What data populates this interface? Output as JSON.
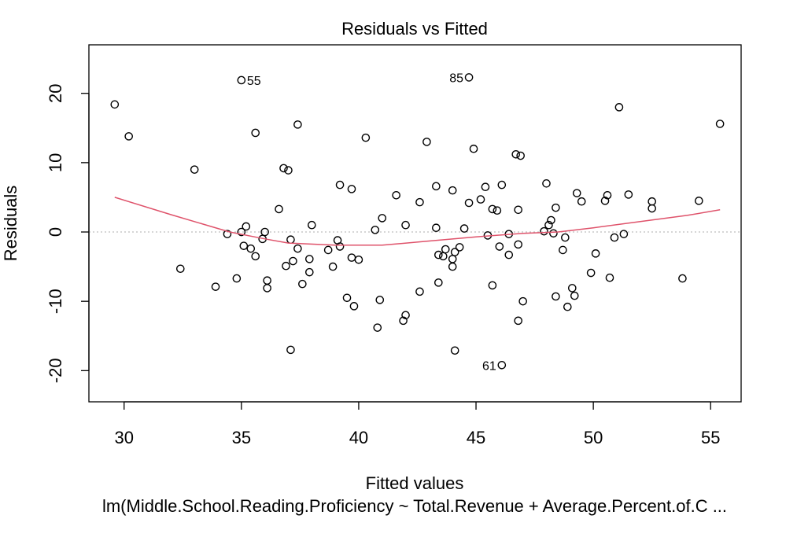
{
  "chart_data": {
    "type": "scatter",
    "title": "Residuals vs Fitted",
    "xlabel": "Fitted values",
    "ylabel": "Residuals",
    "subtitle": "lm(Middle.School.Reading.Proficiency ~ Total.Revenue + Average.Percent.of.C ...",
    "xlim": [
      28.5,
      56.3
    ],
    "ylim": [
      -24.5,
      27
    ],
    "x_ticks": [
      30,
      35,
      40,
      45,
      50,
      55
    ],
    "y_ticks": [
      -20,
      -10,
      0,
      10,
      20
    ],
    "x_tick_labels": [
      "30",
      "35",
      "40",
      "45",
      "50",
      "55"
    ],
    "y_tick_labels": [
      "-20",
      "-10",
      "0",
      "10",
      "20"
    ],
    "reference_line": 0,
    "colors": {
      "points": "#000000",
      "smooth": "#DF536B",
      "reference": "#BEBEBE"
    },
    "labeled_points": [
      {
        "label": "55",
        "x": 35.0,
        "y": 21.9
      },
      {
        "label": "85",
        "x": 44.7,
        "y": 22.3
      },
      {
        "label": "61",
        "x": 46.1,
        "y": -19.2
      }
    ],
    "points": [
      [
        29.6,
        18.4
      ],
      [
        30.2,
        13.8
      ],
      [
        33.0,
        9.0
      ],
      [
        32.4,
        -5.3
      ],
      [
        33.9,
        -7.9
      ],
      [
        34.4,
        -0.3
      ],
      [
        34.8,
        -6.7
      ],
      [
        35.0,
        0.0
      ],
      [
        35.1,
        -2.0
      ],
      [
        35.2,
        0.8
      ],
      [
        35.4,
        -2.4
      ],
      [
        35.6,
        14.3
      ],
      [
        35.6,
        -3.5
      ],
      [
        35.9,
        -1.0
      ],
      [
        36.0,
        0.0
      ],
      [
        36.1,
        -7.0
      ],
      [
        36.1,
        -8.1
      ],
      [
        36.6,
        3.3
      ],
      [
        36.8,
        9.2
      ],
      [
        36.9,
        -4.9
      ],
      [
        37.1,
        -1.1
      ],
      [
        37.0,
        8.9
      ],
      [
        37.1,
        -17.0
      ],
      [
        37.2,
        -4.2
      ],
      [
        37.4,
        15.5
      ],
      [
        37.4,
        -2.4
      ],
      [
        37.6,
        -7.5
      ],
      [
        37.9,
        -3.9
      ],
      [
        37.9,
        -5.8
      ],
      [
        38.0,
        1.0
      ],
      [
        38.7,
        -2.6
      ],
      [
        38.9,
        -5.0
      ],
      [
        39.1,
        -1.2
      ],
      [
        39.2,
        6.8
      ],
      [
        39.2,
        -2.1
      ],
      [
        39.5,
        -9.5
      ],
      [
        39.7,
        -3.7
      ],
      [
        39.7,
        6.2
      ],
      [
        39.8,
        -10.7
      ],
      [
        40.0,
        -4.0
      ],
      [
        40.3,
        13.6
      ],
      [
        40.7,
        0.3
      ],
      [
        40.8,
        -13.8
      ],
      [
        40.9,
        -9.8
      ],
      [
        41.0,
        2.0
      ],
      [
        41.6,
        5.3
      ],
      [
        41.9,
        -12.8
      ],
      [
        42.0,
        -12.0
      ],
      [
        42.0,
        1.0
      ],
      [
        42.6,
        -8.6
      ],
      [
        42.6,
        4.3
      ],
      [
        42.9,
        13.0
      ],
      [
        43.3,
        0.6
      ],
      [
        43.3,
        6.6
      ],
      [
        43.4,
        -3.3
      ],
      [
        43.4,
        -7.3
      ],
      [
        43.6,
        -3.5
      ],
      [
        43.7,
        -2.5
      ],
      [
        44.0,
        -3.9
      ],
      [
        44.0,
        6.0
      ],
      [
        44.1,
        -2.9
      ],
      [
        44.0,
        -5.0
      ],
      [
        44.1,
        -17.1
      ],
      [
        44.3,
        -2.2
      ],
      [
        44.5,
        0.5
      ],
      [
        44.7,
        4.2
      ],
      [
        44.9,
        12.0
      ],
      [
        45.2,
        4.7
      ],
      [
        45.4,
        6.5
      ],
      [
        45.5,
        -0.5
      ],
      [
        45.7,
        3.3
      ],
      [
        45.7,
        -7.7
      ],
      [
        45.9,
        3.1
      ],
      [
        46.0,
        -2.1
      ],
      [
        46.1,
        6.8
      ],
      [
        46.4,
        -0.3
      ],
      [
        46.4,
        -3.3
      ],
      [
        46.7,
        11.2
      ],
      [
        46.8,
        3.2
      ],
      [
        46.8,
        -12.8
      ],
      [
        46.8,
        -1.8
      ],
      [
        46.9,
        11.0
      ],
      [
        47.0,
        -10.0
      ],
      [
        47.9,
        0.1
      ],
      [
        48.0,
        7.0
      ],
      [
        48.1,
        1.0
      ],
      [
        48.2,
        1.7
      ],
      [
        48.3,
        -0.2
      ],
      [
        48.4,
        3.5
      ],
      [
        48.4,
        -9.3
      ],
      [
        48.7,
        -2.6
      ],
      [
        48.8,
        -0.8
      ],
      [
        48.9,
        -10.8
      ],
      [
        49.1,
        -8.1
      ],
      [
        49.2,
        -9.2
      ],
      [
        49.3,
        5.6
      ],
      [
        49.5,
        4.4
      ],
      [
        49.9,
        -5.9
      ],
      [
        50.1,
        -3.1
      ],
      [
        50.5,
        4.5
      ],
      [
        50.6,
        5.3
      ],
      [
        50.7,
        -6.6
      ],
      [
        50.9,
        -0.8
      ],
      [
        51.1,
        18.0
      ],
      [
        51.3,
        -0.3
      ],
      [
        51.5,
        5.4
      ],
      [
        52.5,
        3.4
      ],
      [
        52.5,
        4.4
      ],
      [
        53.8,
        -6.7
      ],
      [
        54.5,
        4.5
      ],
      [
        55.4,
        15.6
      ],
      [
        35.0,
        21.9
      ],
      [
        44.7,
        22.3
      ],
      [
        46.1,
        -19.2
      ]
    ],
    "smooth": [
      [
        29.6,
        5.0
      ],
      [
        32.0,
        2.5
      ],
      [
        34.5,
        0.0
      ],
      [
        36.0,
        -1.0
      ],
      [
        37.0,
        -1.6
      ],
      [
        39.0,
        -1.9
      ],
      [
        41.0,
        -1.9
      ],
      [
        43.0,
        -1.3
      ],
      [
        45.0,
        -0.7
      ],
      [
        47.0,
        -0.2
      ],
      [
        48.5,
        0.0
      ],
      [
        50.0,
        0.6
      ],
      [
        52.0,
        1.5
      ],
      [
        54.0,
        2.4
      ],
      [
        55.4,
        3.2
      ]
    ]
  }
}
